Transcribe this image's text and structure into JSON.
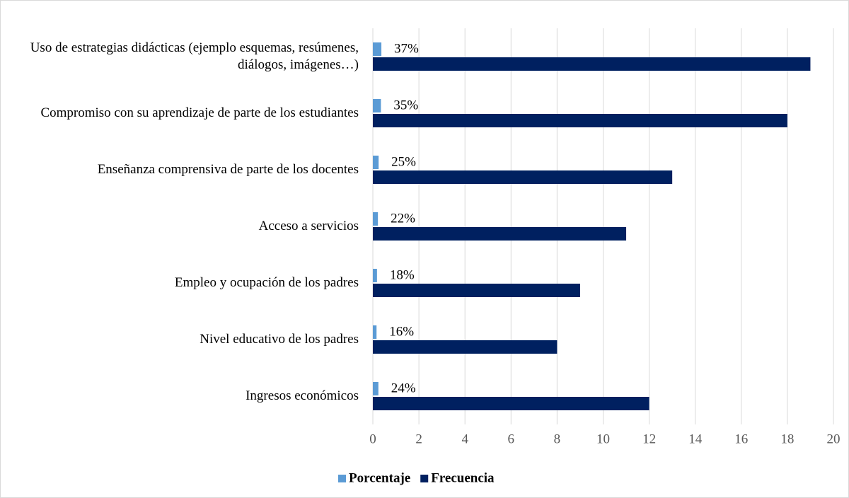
{
  "chart_data": {
    "type": "barh",
    "categories": [
      "Uso de estrategias didácticas (ejemplo esquemas, resúmenes, diálogos, imágenes…)",
      "Compromiso con su aprendizaje de parte de los estudiantes",
      "Enseñanza comprensiva de parte de los docentes",
      "Acceso a servicios",
      "Empleo y ocupación de los padres",
      "Nivel educativo de los padres",
      "Ingresos económicos"
    ],
    "series": [
      {
        "name": "Porcentaje",
        "color": "#5b9bd5",
        "values": [
          0.37,
          0.35,
          0.25,
          0.22,
          0.18,
          0.16,
          0.24
        ],
        "value_labels": [
          "37%",
          "35%",
          "25%",
          "22%",
          "18%",
          "16%",
          "24%"
        ]
      },
      {
        "name": "Frecuencia",
        "color": "#002060",
        "values": [
          19,
          18,
          13,
          11,
          9,
          8,
          12
        ]
      }
    ],
    "xlim": [
      0,
      20
    ],
    "xticks": [
      0,
      2,
      4,
      6,
      8,
      10,
      12,
      14,
      16,
      18,
      20
    ],
    "grid": true,
    "legend": "bottom"
  }
}
